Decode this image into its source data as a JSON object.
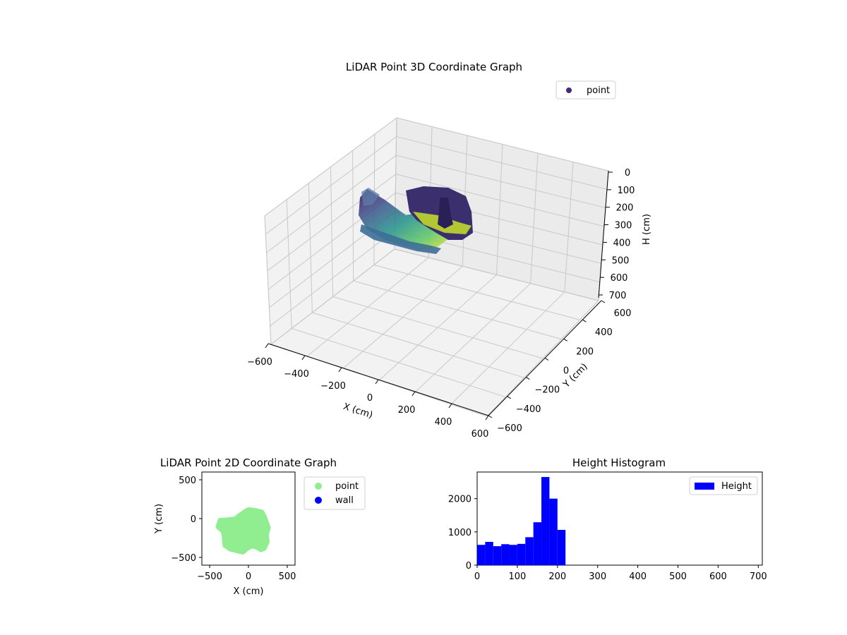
{
  "chart_data": [
    {
      "type": "scatter3d",
      "title": "LiDAR Point 3D Coordinate Graph",
      "xlabel": "X (cm)",
      "ylabel": "Y (cm)",
      "zlabel": "H (cm)",
      "xlim": [
        -600,
        600
      ],
      "ylim": [
        -600,
        600
      ],
      "zlim": [
        0,
        700
      ],
      "z_inverted": true,
      "xticks": [
        "−600",
        "−400",
        "−200",
        "0",
        "200",
        "400",
        "600"
      ],
      "yticks": [
        "−600",
        "−400",
        "−200",
        "0",
        "200",
        "400",
        "600"
      ],
      "zticks": [
        "0",
        "100",
        "200",
        "300",
        "400",
        "500",
        "600",
        "700"
      ],
      "legend": {
        "label": "point",
        "location": "upper-right",
        "color": "#482878"
      },
      "colormap": "viridis",
      "grid": true
    },
    {
      "type": "scatter",
      "title": "LiDAR Point 2D Coordinate Graph",
      "xlabel": "X (cm)",
      "ylabel": "Y (cm)",
      "xlim": [
        -600,
        600
      ],
      "ylim": [
        -600,
        600
      ],
      "xticks": [
        "−500",
        "0",
        "500"
      ],
      "yticks": [
        "−500",
        "0",
        "500"
      ],
      "series": [
        {
          "name": "point",
          "color": "#90ee90",
          "outline": [
            [
              -390,
              -70
            ],
            [
              -370,
              -15
            ],
            [
              -300,
              -10
            ],
            [
              -240,
              -5
            ],
            [
              -170,
              5
            ],
            [
              -130,
              40
            ],
            [
              -60,
              90
            ],
            [
              0,
              125
            ],
            [
              80,
              115
            ],
            [
              180,
              90
            ],
            [
              210,
              30
            ],
            [
              230,
              -20
            ],
            [
              265,
              -120
            ],
            [
              240,
              -200
            ],
            [
              250,
              -300
            ],
            [
              210,
              -390
            ],
            [
              160,
              -410
            ],
            [
              110,
              -380
            ],
            [
              50,
              -360
            ],
            [
              -10,
              -390
            ],
            [
              -70,
              -440
            ],
            [
              -120,
              -430
            ],
            [
              -240,
              -400
            ],
            [
              -310,
              -350
            ],
            [
              -320,
              -250
            ],
            [
              -330,
              -170
            ],
            [
              -400,
              -110
            ]
          ]
        },
        {
          "name": "wall",
          "color": "#0000ff",
          "outline": []
        }
      ],
      "legend": {
        "location": "outside-right"
      }
    },
    {
      "type": "bar",
      "title": "Height Histogram",
      "xlabel": "",
      "ylabel": "",
      "xlim": [
        0,
        710
      ],
      "ylim": [
        0,
        2800
      ],
      "xticks": [
        "0",
        "100",
        "200",
        "300",
        "400",
        "500",
        "600",
        "700"
      ],
      "yticks": [
        "0",
        "1000",
        "2000"
      ],
      "bin_width": 20,
      "bins": [
        10,
        30,
        50,
        70,
        90,
        110,
        130,
        150,
        170,
        190,
        210
      ],
      "values": [
        610,
        700,
        570,
        630,
        610,
        640,
        840,
        1290,
        2650,
        2000,
        1060
      ],
      "series_name": "Height",
      "color": "#0000ff",
      "legend": {
        "label": "Height",
        "location": "upper-right"
      }
    }
  ]
}
